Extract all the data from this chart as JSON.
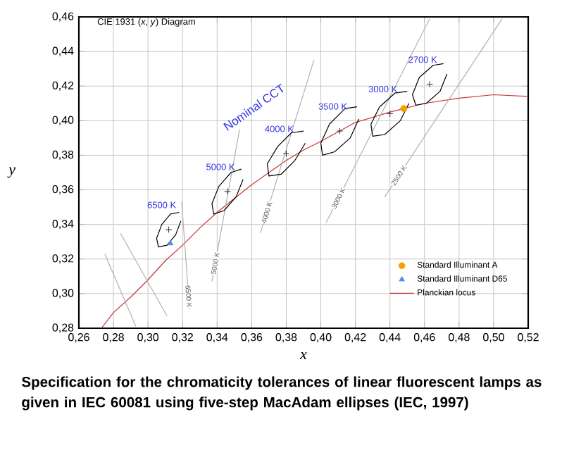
{
  "chart_data": {
    "type": "line",
    "title": "CIE 1931 (*x*, *y*) Diagram",
    "xlabel": "x",
    "ylabel": "y",
    "xlim": [
      0.26,
      0.52
    ],
    "ylim": [
      0.28,
      0.46
    ],
    "xticks": [
      {
        "value": 0.26,
        "label": "0,26"
      },
      {
        "value": 0.28,
        "label": "0,28"
      },
      {
        "value": 0.3,
        "label": "0,30"
      },
      {
        "value": 0.32,
        "label": "0,32"
      },
      {
        "value": 0.34,
        "label": "0,34"
      },
      {
        "value": 0.36,
        "label": "0,36"
      },
      {
        "value": 0.38,
        "label": "0,38"
      },
      {
        "value": 0.4,
        "label": "0,40"
      },
      {
        "value": 0.42,
        "label": "0,42"
      },
      {
        "value": 0.44,
        "label": "0,44"
      },
      {
        "value": 0.46,
        "label": "0,46"
      },
      {
        "value": 0.48,
        "label": "0,48"
      },
      {
        "value": 0.5,
        "label": "0,50"
      },
      {
        "value": 0.52,
        "label": "0,52"
      }
    ],
    "yticks": [
      {
        "value": 0.28,
        "label": "0,28"
      },
      {
        "value": 0.3,
        "label": "0,30"
      },
      {
        "value": 0.32,
        "label": "0,32"
      },
      {
        "value": 0.34,
        "label": "0,34"
      },
      {
        "value": 0.36,
        "label": "0,36"
      },
      {
        "value": 0.38,
        "label": "0,38"
      },
      {
        "value": 0.4,
        "label": "0,40"
      },
      {
        "value": 0.42,
        "label": "0,42"
      },
      {
        "value": 0.44,
        "label": "0,44"
      },
      {
        "value": 0.46,
        "label": "0,46"
      }
    ],
    "grid": true,
    "legend": "bottom right",
    "series": [
      {
        "name": "Standard Illuminant A",
        "type": "scatter",
        "marker": "circle",
        "color": "#f5a000",
        "x": [
          0.448
        ],
        "values": [
          0.407
        ]
      },
      {
        "name": "Standard Illuminant D65",
        "type": "scatter",
        "marker": "triangle",
        "color": "#4f8fe0",
        "x": [
          0.313
        ],
        "values": [
          0.329
        ]
      },
      {
        "name": "Planckian locus",
        "color": "#cc3333",
        "x": [
          0.273,
          0.28,
          0.29,
          0.3,
          0.31,
          0.32,
          0.33,
          0.34,
          0.35,
          0.36,
          0.37,
          0.38,
          0.39,
          0.4,
          0.42,
          0.44,
          0.46,
          0.48,
          0.5,
          0.52
        ],
        "values": [
          0.28,
          0.289,
          0.298,
          0.308,
          0.319,
          0.328,
          0.338,
          0.347,
          0.355,
          0.363,
          0.37,
          0.377,
          0.383,
          0.388,
          0.399,
          0.405,
          0.41,
          0.413,
          0.415,
          0.414
        ]
      },
      {
        "color": "#b0b0b0",
        "x": [
          0.275,
          0.293
        ],
        "values": [
          0.323,
          0.281
        ]
      },
      {
        "color": "#b0b0b0",
        "x": [
          0.284,
          0.311
        ],
        "values": [
          0.335,
          0.287
        ]
      },
      {
        "name": "6500 K",
        "color": "#b0b0b0",
        "x": [
          0.3195,
          0.324
        ],
        "values": [
          0.353,
          0.291
        ]
      },
      {
        "name": "5000 K",
        "color": "#b0b0b0",
        "x": [
          0.353,
          0.337
        ],
        "values": [
          0.395,
          0.307
        ]
      },
      {
        "name": "4000 K",
        "color": "#b0b0b0",
        "x": [
          0.396,
          0.365
        ],
        "values": [
          0.435,
          0.335
        ]
      },
      {
        "name": "3000 K",
        "color": "#b0b0b0",
        "x": [
          0.463,
          0.403
        ],
        "values": [
          0.459,
          0.341
        ]
      },
      {
        "name": "2500 K",
        "color": "#b0b0b0",
        "x": [
          0.505,
          0.437
        ],
        "values": [
          0.459,
          0.356
        ]
      },
      {
        "color": "#000000",
        "x": [
          0.318,
          0.313,
          0.308,
          0.305,
          0.306,
          0.311,
          0.316,
          0.319
        ],
        "values": [
          0.347,
          0.346,
          0.34,
          0.332,
          0.327,
          0.328,
          0.334,
          0.342
        ]
      },
      {
        "color": "#000000",
        "x": [
          0.354,
          0.348,
          0.341,
          0.337,
          0.338,
          0.344,
          0.351,
          0.355
        ],
        "values": [
          0.372,
          0.37,
          0.362,
          0.352,
          0.346,
          0.348,
          0.356,
          0.366
        ]
      },
      {
        "color": "#000000",
        "x": [
          0.39,
          0.383,
          0.375,
          0.369,
          0.37,
          0.377,
          0.385,
          0.391
        ],
        "values": [
          0.394,
          0.393,
          0.385,
          0.375,
          0.368,
          0.369,
          0.377,
          0.387
        ]
      },
      {
        "color": "#000000",
        "x": [
          0.421,
          0.414,
          0.405,
          0.4,
          0.401,
          0.408,
          0.417,
          0.422
        ],
        "values": [
          0.408,
          0.407,
          0.398,
          0.387,
          0.38,
          0.382,
          0.39,
          0.401
        ]
      },
      {
        "color": "#000000",
        "x": [
          0.45,
          0.443,
          0.434,
          0.429,
          0.43,
          0.437,
          0.446,
          0.451
        ],
        "values": [
          0.417,
          0.416,
          0.408,
          0.398,
          0.391,
          0.392,
          0.4,
          0.41
        ]
      },
      {
        "color": "#000000",
        "x": [
          0.471,
          0.465,
          0.457,
          0.453,
          0.455,
          0.461,
          0.469,
          0.473
        ],
        "values": [
          0.433,
          0.432,
          0.425,
          0.415,
          0.409,
          0.41,
          0.417,
          0.427
        ]
      },
      {
        "type": "scatter",
        "marker": "cross",
        "color": "#000000",
        "x": [
          0.312,
          0.346,
          0.38,
          0.411,
          0.44,
          0.463
        ],
        "values": [
          0.337,
          0.359,
          0.381,
          0.394,
          0.404,
          0.421
        ]
      }
    ],
    "annotations": [
      "Nominal CCT",
      {
        "text": "6500 K",
        "x": 0.312,
        "y": 0.337
      },
      {
        "text": "5000 K",
        "x": 0.346,
        "y": 0.359
      },
      {
        "text": "4000 K",
        "x": 0.38,
        "y": 0.381
      },
      {
        "text": "3500 K",
        "x": 0.411,
        "y": 0.394
      },
      {
        "text": "3000 K",
        "x": 0.44,
        "y": 0.404
      },
      {
        "text": "2700 K",
        "x": 0.463,
        "y": 0.421
      },
      "Specification for the chromaticity tolerances of linear fluorescent lamps as given in IEC 60081 using five-step MacAdam ellipses (IEC, 1997)"
    ]
  }
}
